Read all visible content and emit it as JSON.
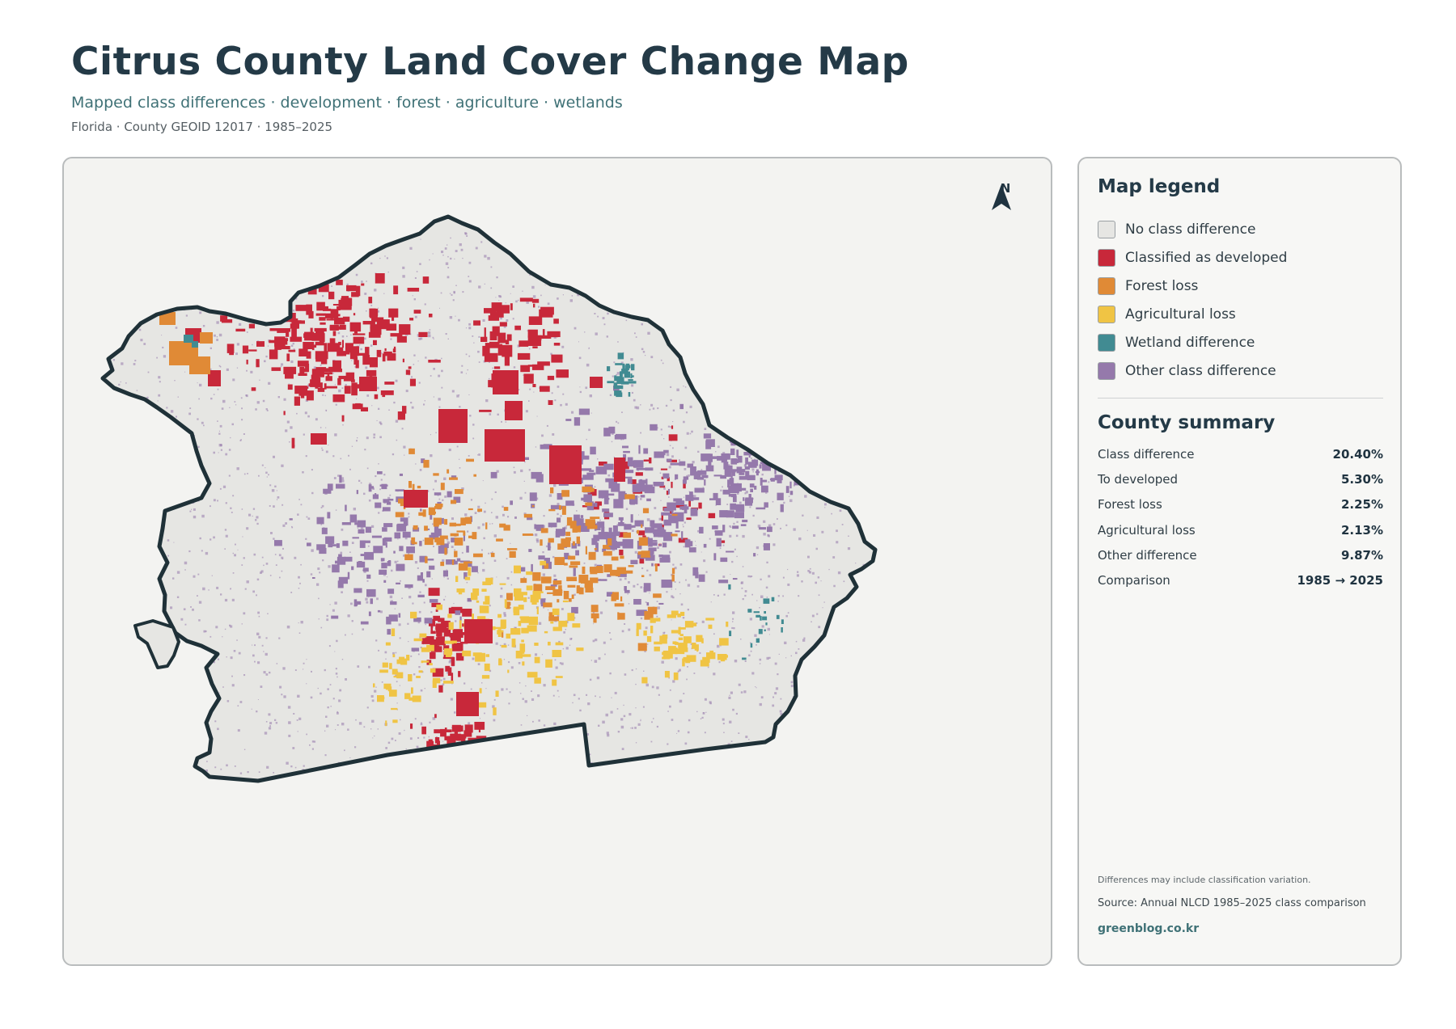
{
  "header": {
    "title": "Citrus County Land Cover Change Map",
    "subtitle": "Mapped class differences · development · forest · agriculture · wetlands",
    "meta": "Florida · County GEOID 12017 · 1985–2025"
  },
  "map": {
    "north_label": "N",
    "colors": {
      "base": "#e6e6e3",
      "outline": "#1f3138",
      "developed": "#c8283a",
      "forest": "#e08a36",
      "agricultural": "#f0c444",
      "wetland": "#418b92",
      "other": "#9579ab"
    }
  },
  "legend": {
    "title": "Map legend",
    "items": [
      {
        "label": "No class difference",
        "color": "#e6e6e3"
      },
      {
        "label": "Classified as developed",
        "color": "#c8283a"
      },
      {
        "label": "Forest loss",
        "color": "#e08a36"
      },
      {
        "label": "Agricultural loss",
        "color": "#f0c444"
      },
      {
        "label": "Wetland difference",
        "color": "#418b92"
      },
      {
        "label": "Other class difference",
        "color": "#9579ab"
      }
    ]
  },
  "summary": {
    "title": "County summary",
    "rows": [
      {
        "label": "Class difference",
        "value": "20.40%"
      },
      {
        "label": "To developed",
        "value": "5.30%"
      },
      {
        "label": "Forest loss",
        "value": "2.25%"
      },
      {
        "label": "Agricultural loss",
        "value": "2.13%"
      },
      {
        "label": "Other difference",
        "value": "9.87%"
      },
      {
        "label": "Comparison",
        "value": "1985 → 2025"
      }
    ]
  },
  "footer": {
    "note": "Differences may include classification variation.",
    "source": "Source: Annual NLCD 1985–2025 class comparison",
    "site": "greenblog.co.kr"
  }
}
